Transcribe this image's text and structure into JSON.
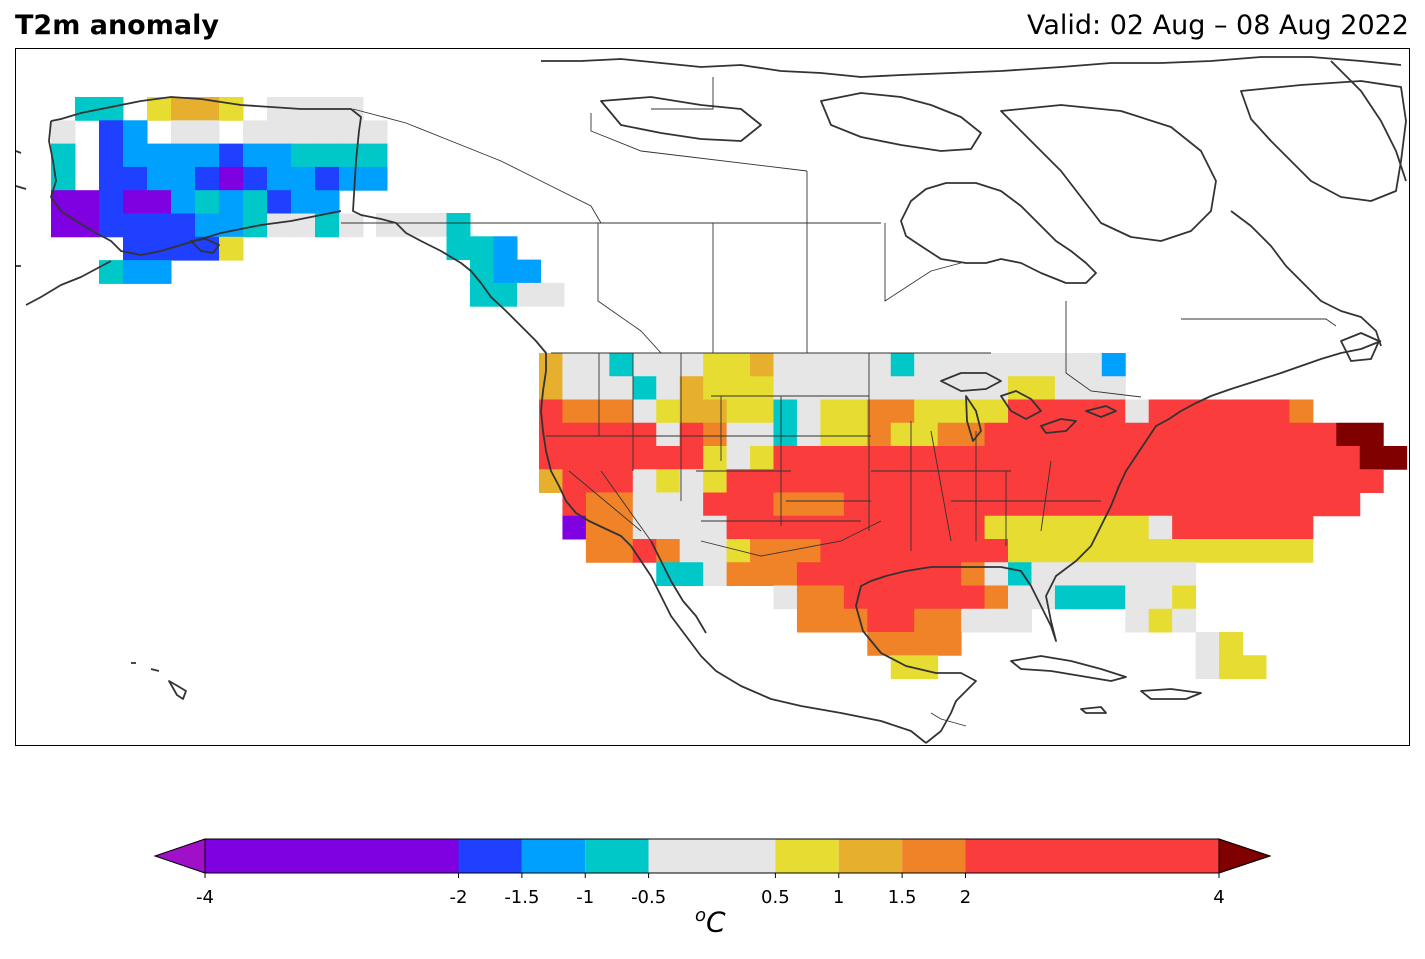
{
  "header": {
    "title": "T2m anomaly",
    "valid": "Valid: 02 Aug – 08 Aug 2022"
  },
  "colorbar": {
    "ticks": [
      "-4",
      "-2",
      "-1.5",
      "-1",
      "-0.5",
      "0.5",
      "1",
      "1.5",
      "2",
      "4"
    ],
    "units_base": "C",
    "units_sup": "o",
    "under_color": "#a010c8",
    "over_color": "#800000",
    "bins": [
      {
        "lo": -4,
        "hi": -2,
        "color": "#7f00e0"
      },
      {
        "lo": -2,
        "hi": -1.5,
        "color": "#2040ff"
      },
      {
        "lo": -1.5,
        "hi": -1,
        "color": "#00a0ff"
      },
      {
        "lo": -1,
        "hi": -0.5,
        "color": "#00c8c8"
      },
      {
        "lo": -0.5,
        "hi": 0.5,
        "color": "#e6e6e6"
      },
      {
        "lo": 0.5,
        "hi": 1,
        "color": "#e6dc32"
      },
      {
        "lo": 1,
        "hi": 1.5,
        "color": "#e6af2d"
      },
      {
        "lo": 1.5,
        "hi": 2,
        "color": "#f08228"
      },
      {
        "lo": 2,
        "hi": 4,
        "color": "#fa3c3c"
      }
    ]
  }
}
